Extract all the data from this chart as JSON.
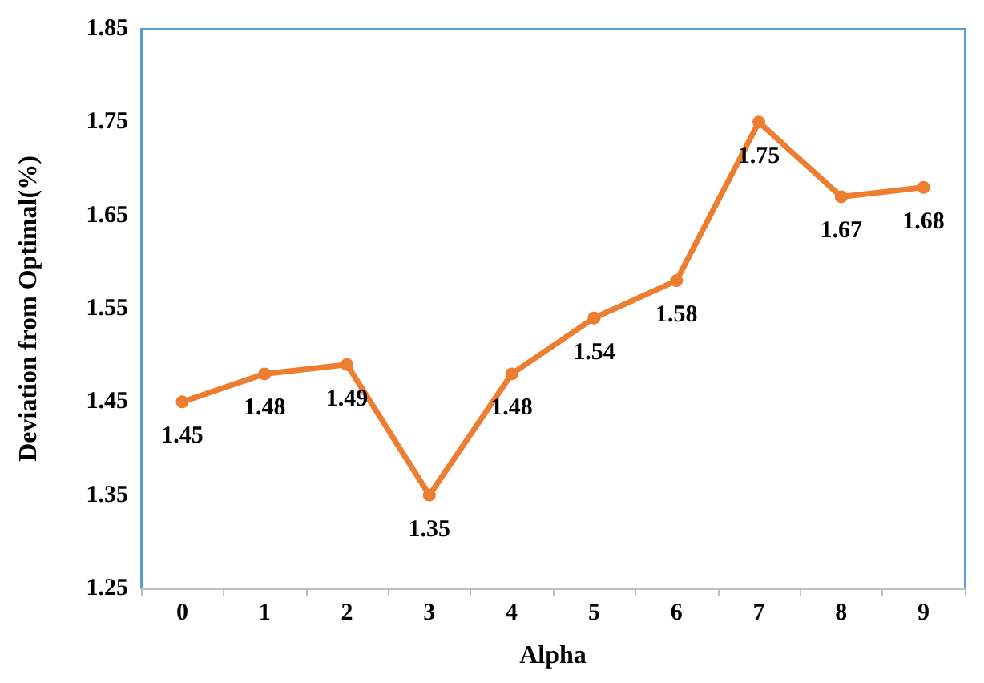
{
  "chart_data": {
    "type": "line",
    "xlabel": "Alpha",
    "ylabel": "Deviation from Optimal(%)",
    "categories": [
      "0",
      "1",
      "2",
      "3",
      "4",
      "5",
      "6",
      "7",
      "8",
      "9"
    ],
    "values": [
      1.45,
      1.48,
      1.49,
      1.35,
      1.48,
      1.54,
      1.58,
      1.75,
      1.67,
      1.68
    ],
    "color": "#ed7d31",
    "ylim": [
      1.25,
      1.85
    ],
    "yticks": [
      1.25,
      1.35,
      1.45,
      1.55,
      1.65,
      1.75,
      1.85
    ],
    "data_labels": true,
    "marker": "circle",
    "line_style": "solid"
  }
}
